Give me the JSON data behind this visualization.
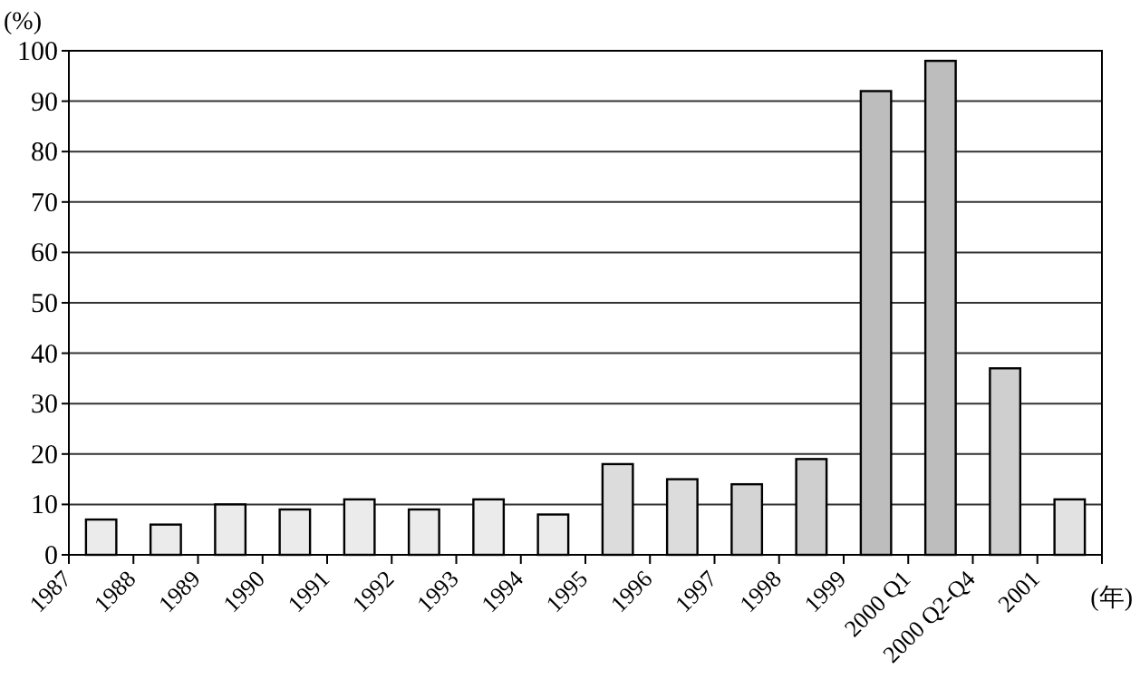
{
  "chart_data": {
    "type": "bar",
    "ylabel": "(%)",
    "xlabel": "(年)",
    "categories": [
      "1987",
      "1988",
      "1989",
      "1990",
      "1991",
      "1992",
      "1993",
      "1994",
      "1995",
      "1996",
      "1997",
      "1998",
      "1999",
      "2000 Q1",
      "2000 Q2-Q4",
      "2001"
    ],
    "values": [
      7,
      6,
      10,
      9,
      11,
      9,
      11,
      8,
      18,
      15,
      14,
      19,
      92,
      98,
      37,
      11
    ],
    "colors": [
      "#ebebeb",
      "#ebebeb",
      "#ebebeb",
      "#ebebeb",
      "#ebebeb",
      "#ebebeb",
      "#ebebeb",
      "#ebebeb",
      "#dcdcdc",
      "#dcdcdc",
      "#d4d4d4",
      "#cfcfcf",
      "#bdbdbd",
      "#bdbdbd",
      "#cfcfcf",
      "#e2e2e2"
    ],
    "ylim": [
      0,
      100
    ],
    "yticks": [
      0,
      10,
      20,
      30,
      40,
      50,
      60,
      70,
      80,
      90,
      100
    ],
    "grid": "y"
  }
}
